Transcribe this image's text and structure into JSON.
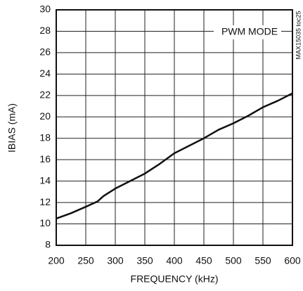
{
  "chart_data": {
    "type": "line",
    "xlabel": "FREQUENCY (kHz)",
    "ylabel": "IBIAS (mA)",
    "annotations": [
      "PWM MODE",
      "MAX15035 toc25"
    ],
    "x": [
      200,
      225,
      250,
      270,
      280,
      300,
      325,
      350,
      375,
      400,
      425,
      450,
      475,
      500,
      525,
      550,
      575,
      600
    ],
    "series": [
      {
        "name": "PWM MODE",
        "color": "#111111",
        "values": [
          10.5,
          11.0,
          11.6,
          12.1,
          12.6,
          13.3,
          14.0,
          14.7,
          15.6,
          16.6,
          17.3,
          18.0,
          18.8,
          19.4,
          20.1,
          20.9,
          21.5,
          22.2
        ]
      }
    ],
    "xlim": [
      200,
      600
    ],
    "xticks": [
      200,
      250,
      300,
      350,
      400,
      450,
      500,
      550,
      600
    ],
    "ylim": [
      8,
      30
    ],
    "yticks": [
      8,
      10,
      12,
      14,
      16,
      18,
      20,
      22,
      24,
      26,
      28,
      30
    ],
    "grid": true
  }
}
